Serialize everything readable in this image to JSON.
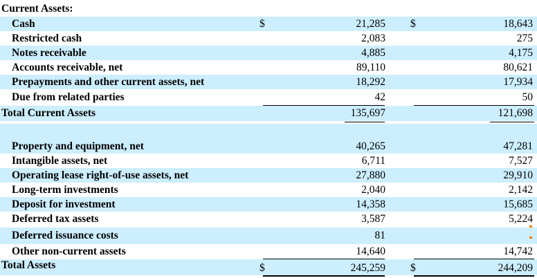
{
  "current_assets_header": "Current Assets:",
  "currency_symbol": "$",
  "current_rows": [
    {
      "label": "Cash",
      "col1": "21,285",
      "col2": "18,643"
    },
    {
      "label": "Restricted cash",
      "col1": "2,083",
      "col2": "275"
    },
    {
      "label": "Notes receivable",
      "col1": "4,885",
      "col2": "4,175"
    },
    {
      "label": "Accounts receivable, net",
      "col1": "89,110",
      "col2": "80,621"
    },
    {
      "label": "Prepayments and other current assets, net",
      "col1": "18,292",
      "col2": "17,934"
    },
    {
      "label": "Due from related parties",
      "col1": "42",
      "col2": "50"
    }
  ],
  "total_current": {
    "label": "Total Current Assets",
    "col1": "135,697",
    "col2": "121,698"
  },
  "noncurrent_rows": [
    {
      "label": "Property and equipment, net",
      "col1": "40,265",
      "col2": "47,281"
    },
    {
      "label": "Intangible assets, net",
      "col1": "6,711",
      "col2": "7,527"
    },
    {
      "label": "Operating lease right-of-use assets, net",
      "col1": "27,880",
      "col2": "29,910"
    },
    {
      "label": "Long-term investments",
      "col1": "2,040",
      "col2": "2,142"
    },
    {
      "label": "Deposit for investment",
      "col1": "14,358",
      "col2": "15,685"
    },
    {
      "label": "Deferred tax assets",
      "col1": "3,587",
      "col2": "5,224"
    },
    {
      "label": "Deferred issuance costs",
      "col1": "81",
      "col2": ""
    },
    {
      "label": "Other non-current assets",
      "col1": "14,640",
      "col2": "14,742"
    }
  ],
  "total_assets": {
    "label": "Total Assets",
    "col1": "245,259",
    "col2": "244,209"
  }
}
